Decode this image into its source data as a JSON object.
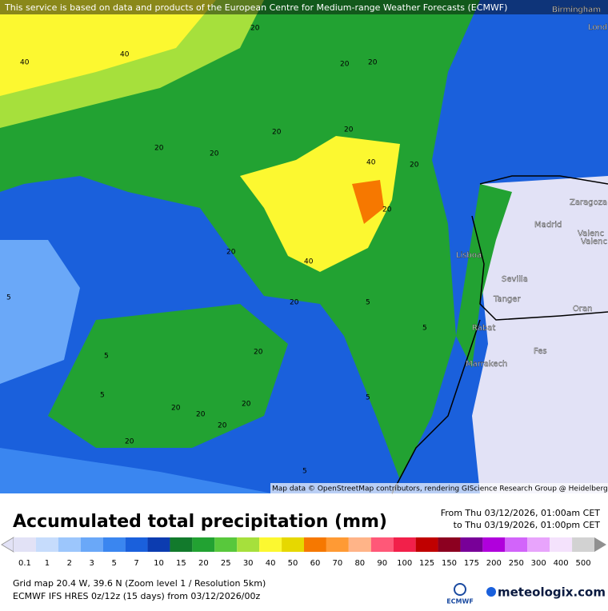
{
  "header": {
    "attribution": "This service is based on data and products of the European Centre for Medium-range Weather Forecasts (ECMWF)"
  },
  "map": {
    "places": [
      "Birmingham",
      "Lond",
      "Zaragoza",
      "Madrid",
      "Valenc",
      "Valenc",
      "Lisboa",
      "Sevilla",
      "Tanger",
      "Oran",
      "Rabat",
      "Fes",
      "Marrakech"
    ],
    "contour_labels": [
      "40",
      "40",
      "40",
      "40",
      "20",
      "20",
      "20",
      "20",
      "20",
      "20",
      "20",
      "20",
      "20",
      "20",
      "20",
      "20",
      "20",
      "20",
      "20",
      "20",
      "20",
      "5",
      "5",
      "5",
      "5",
      "5",
      "5",
      "5"
    ],
    "credit": "Map data © OpenStreetMap contributors, rendering GIScience Research Group @ Heidelberg University"
  },
  "legend": {
    "title": "Accumulated total precipitation (mm)",
    "from": "From Thu 03/12/2026, 01:00am CET",
    "to": "to Thu 03/19/2026, 01:00pm CET",
    "scale": [
      {
        "label": "0.1",
        "color": "#e2e2f6"
      },
      {
        "label": "1",
        "color": "#c6dcfc"
      },
      {
        "label": "2",
        "color": "#9cc6fc"
      },
      {
        "label": "3",
        "color": "#6aa8f8"
      },
      {
        "label": "5",
        "color": "#3a86f0"
      },
      {
        "label": "7",
        "color": "#1a60dc"
      },
      {
        "label": "10",
        "color": "#0c3cb0"
      },
      {
        "label": "15",
        "color": "#127a2c"
      },
      {
        "label": "20",
        "color": "#22a232"
      },
      {
        "label": "25",
        "color": "#58c83c"
      },
      {
        "label": "30",
        "color": "#a6e03c"
      },
      {
        "label": "40",
        "color": "#fcf830"
      },
      {
        "label": "50",
        "color": "#e6d800"
      },
      {
        "label": "60",
        "color": "#f67800"
      },
      {
        "label": "70",
        "color": "#ff9a34"
      },
      {
        "label": "80",
        "color": "#ffb488"
      },
      {
        "label": "90",
        "color": "#ff5878"
      },
      {
        "label": "100",
        "color": "#f2204a"
      },
      {
        "label": "125",
        "color": "#c00000"
      },
      {
        "label": "150",
        "color": "#8c0020"
      },
      {
        "label": "175",
        "color": "#780098"
      },
      {
        "label": "200",
        "color": "#b000dc"
      },
      {
        "label": "250",
        "color": "#d264fa"
      },
      {
        "label": "300",
        "color": "#e8a4fc"
      },
      {
        "label": "400",
        "color": "#f4e2fc"
      },
      {
        "label": "500",
        "color": "#d2d2d2"
      }
    ]
  },
  "footer": {
    "grid": "Grid map 20.4 W, 39.6 N (Zoom level 1 / Resolution 5km)",
    "model": "ECMWF IFS HRES 0z/12z (15 days) from 03/12/2026/00z",
    "ecmwf": "ECMWF",
    "brand": "meteologix.com"
  }
}
